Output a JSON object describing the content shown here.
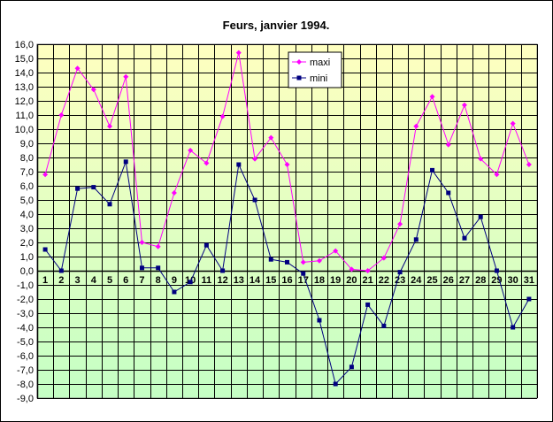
{
  "chart_data": {
    "type": "line",
    "title": "Feurs, janvier 1994.",
    "xlabel": "",
    "ylabel": "",
    "ylim": [
      -9.0,
      16.0
    ],
    "y_step": 1.0,
    "grid": true,
    "legend_position": "top-center",
    "categories": [
      "1",
      "2",
      "3",
      "4",
      "5",
      "6",
      "7",
      "8",
      "9",
      "10",
      "11",
      "12",
      "13",
      "14",
      "15",
      "16",
      "17",
      "18",
      "19",
      "20",
      "21",
      "22",
      "23",
      "24",
      "25",
      "26",
      "27",
      "28",
      "29",
      "30",
      "31"
    ],
    "y_tick_labels": [
      "16,0",
      "15,0",
      "14,0",
      "13,0",
      "12,0",
      "11,0",
      "10,0",
      "9,0",
      "8,0",
      "7,0",
      "6,0",
      "5,0",
      "4,0",
      "3,0",
      "2,0",
      "1,0",
      "0,0",
      "-1,0",
      "-2,0",
      "-3,0",
      "-4,0",
      "-5,0",
      "-6,0",
      "-7,0",
      "-8,0",
      "-9,0"
    ],
    "series": [
      {
        "name": "maxi",
        "color": "#ff00ff",
        "marker": "diamond",
        "values": [
          6.8,
          11.0,
          14.3,
          12.8,
          10.2,
          13.7,
          2.0,
          1.7,
          5.5,
          8.5,
          7.6,
          10.9,
          15.4,
          7.9,
          9.4,
          7.5,
          0.6,
          0.7,
          1.4,
          0.1,
          0.0,
          0.9,
          3.3,
          10.2,
          12.3,
          8.9,
          11.7,
          7.9,
          6.8,
          10.4,
          7.5
        ]
      },
      {
        "name": "mini",
        "color": "#000080",
        "marker": "square",
        "values": [
          1.5,
          0.0,
          5.8,
          5.9,
          4.7,
          7.7,
          0.2,
          0.2,
          -1.5,
          -0.8,
          1.8,
          0.0,
          7.5,
          5.0,
          0.8,
          0.6,
          -0.2,
          -3.5,
          -8.0,
          -6.8,
          -2.4,
          -3.9,
          -0.1,
          2.2,
          7.1,
          5.5,
          2.3,
          3.8,
          0.0,
          -4.0,
          -2.0
        ]
      }
    ]
  }
}
